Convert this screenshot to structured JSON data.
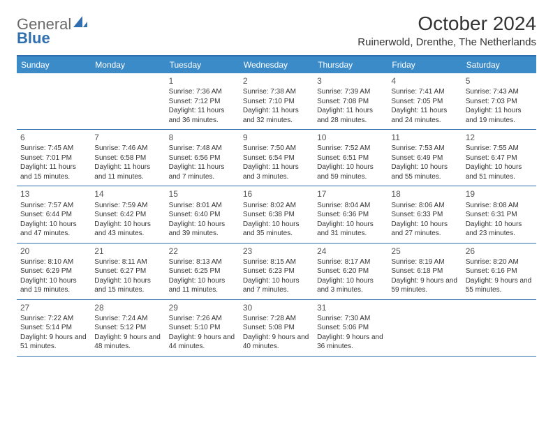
{
  "brand": {
    "part1": "General",
    "part2": "Blue"
  },
  "title": "October 2024",
  "location": "Ruinerwold, Drenthe, The Netherlands",
  "colors": {
    "header_bg": "#3c8bc9",
    "border": "#2f6fb0",
    "text": "#333333",
    "dow_text": "#ffffff"
  },
  "days_of_week": [
    "Sunday",
    "Monday",
    "Tuesday",
    "Wednesday",
    "Thursday",
    "Friday",
    "Saturday"
  ],
  "weeks": [
    [
      null,
      null,
      {
        "n": "1",
        "sr": "Sunrise: 7:36 AM",
        "ss": "Sunset: 7:12 PM",
        "dl": "Daylight: 11 hours and 36 minutes."
      },
      {
        "n": "2",
        "sr": "Sunrise: 7:38 AM",
        "ss": "Sunset: 7:10 PM",
        "dl": "Daylight: 11 hours and 32 minutes."
      },
      {
        "n": "3",
        "sr": "Sunrise: 7:39 AM",
        "ss": "Sunset: 7:08 PM",
        "dl": "Daylight: 11 hours and 28 minutes."
      },
      {
        "n": "4",
        "sr": "Sunrise: 7:41 AM",
        "ss": "Sunset: 7:05 PM",
        "dl": "Daylight: 11 hours and 24 minutes."
      },
      {
        "n": "5",
        "sr": "Sunrise: 7:43 AM",
        "ss": "Sunset: 7:03 PM",
        "dl": "Daylight: 11 hours and 19 minutes."
      }
    ],
    [
      {
        "n": "6",
        "sr": "Sunrise: 7:45 AM",
        "ss": "Sunset: 7:01 PM",
        "dl": "Daylight: 11 hours and 15 minutes."
      },
      {
        "n": "7",
        "sr": "Sunrise: 7:46 AM",
        "ss": "Sunset: 6:58 PM",
        "dl": "Daylight: 11 hours and 11 minutes."
      },
      {
        "n": "8",
        "sr": "Sunrise: 7:48 AM",
        "ss": "Sunset: 6:56 PM",
        "dl": "Daylight: 11 hours and 7 minutes."
      },
      {
        "n": "9",
        "sr": "Sunrise: 7:50 AM",
        "ss": "Sunset: 6:54 PM",
        "dl": "Daylight: 11 hours and 3 minutes."
      },
      {
        "n": "10",
        "sr": "Sunrise: 7:52 AM",
        "ss": "Sunset: 6:51 PM",
        "dl": "Daylight: 10 hours and 59 minutes."
      },
      {
        "n": "11",
        "sr": "Sunrise: 7:53 AM",
        "ss": "Sunset: 6:49 PM",
        "dl": "Daylight: 10 hours and 55 minutes."
      },
      {
        "n": "12",
        "sr": "Sunrise: 7:55 AM",
        "ss": "Sunset: 6:47 PM",
        "dl": "Daylight: 10 hours and 51 minutes."
      }
    ],
    [
      {
        "n": "13",
        "sr": "Sunrise: 7:57 AM",
        "ss": "Sunset: 6:44 PM",
        "dl": "Daylight: 10 hours and 47 minutes."
      },
      {
        "n": "14",
        "sr": "Sunrise: 7:59 AM",
        "ss": "Sunset: 6:42 PM",
        "dl": "Daylight: 10 hours and 43 minutes."
      },
      {
        "n": "15",
        "sr": "Sunrise: 8:01 AM",
        "ss": "Sunset: 6:40 PM",
        "dl": "Daylight: 10 hours and 39 minutes."
      },
      {
        "n": "16",
        "sr": "Sunrise: 8:02 AM",
        "ss": "Sunset: 6:38 PM",
        "dl": "Daylight: 10 hours and 35 minutes."
      },
      {
        "n": "17",
        "sr": "Sunrise: 8:04 AM",
        "ss": "Sunset: 6:36 PM",
        "dl": "Daylight: 10 hours and 31 minutes."
      },
      {
        "n": "18",
        "sr": "Sunrise: 8:06 AM",
        "ss": "Sunset: 6:33 PM",
        "dl": "Daylight: 10 hours and 27 minutes."
      },
      {
        "n": "19",
        "sr": "Sunrise: 8:08 AM",
        "ss": "Sunset: 6:31 PM",
        "dl": "Daylight: 10 hours and 23 minutes."
      }
    ],
    [
      {
        "n": "20",
        "sr": "Sunrise: 8:10 AM",
        "ss": "Sunset: 6:29 PM",
        "dl": "Daylight: 10 hours and 19 minutes."
      },
      {
        "n": "21",
        "sr": "Sunrise: 8:11 AM",
        "ss": "Sunset: 6:27 PM",
        "dl": "Daylight: 10 hours and 15 minutes."
      },
      {
        "n": "22",
        "sr": "Sunrise: 8:13 AM",
        "ss": "Sunset: 6:25 PM",
        "dl": "Daylight: 10 hours and 11 minutes."
      },
      {
        "n": "23",
        "sr": "Sunrise: 8:15 AM",
        "ss": "Sunset: 6:23 PM",
        "dl": "Daylight: 10 hours and 7 minutes."
      },
      {
        "n": "24",
        "sr": "Sunrise: 8:17 AM",
        "ss": "Sunset: 6:20 PM",
        "dl": "Daylight: 10 hours and 3 minutes."
      },
      {
        "n": "25",
        "sr": "Sunrise: 8:19 AM",
        "ss": "Sunset: 6:18 PM",
        "dl": "Daylight: 9 hours and 59 minutes."
      },
      {
        "n": "26",
        "sr": "Sunrise: 8:20 AM",
        "ss": "Sunset: 6:16 PM",
        "dl": "Daylight: 9 hours and 55 minutes."
      }
    ],
    [
      {
        "n": "27",
        "sr": "Sunrise: 7:22 AM",
        "ss": "Sunset: 5:14 PM",
        "dl": "Daylight: 9 hours and 51 minutes."
      },
      {
        "n": "28",
        "sr": "Sunrise: 7:24 AM",
        "ss": "Sunset: 5:12 PM",
        "dl": "Daylight: 9 hours and 48 minutes."
      },
      {
        "n": "29",
        "sr": "Sunrise: 7:26 AM",
        "ss": "Sunset: 5:10 PM",
        "dl": "Daylight: 9 hours and 44 minutes."
      },
      {
        "n": "30",
        "sr": "Sunrise: 7:28 AM",
        "ss": "Sunset: 5:08 PM",
        "dl": "Daylight: 9 hours and 40 minutes."
      },
      {
        "n": "31",
        "sr": "Sunrise: 7:30 AM",
        "ss": "Sunset: 5:06 PM",
        "dl": "Daylight: 9 hours and 36 minutes."
      },
      null,
      null
    ]
  ]
}
